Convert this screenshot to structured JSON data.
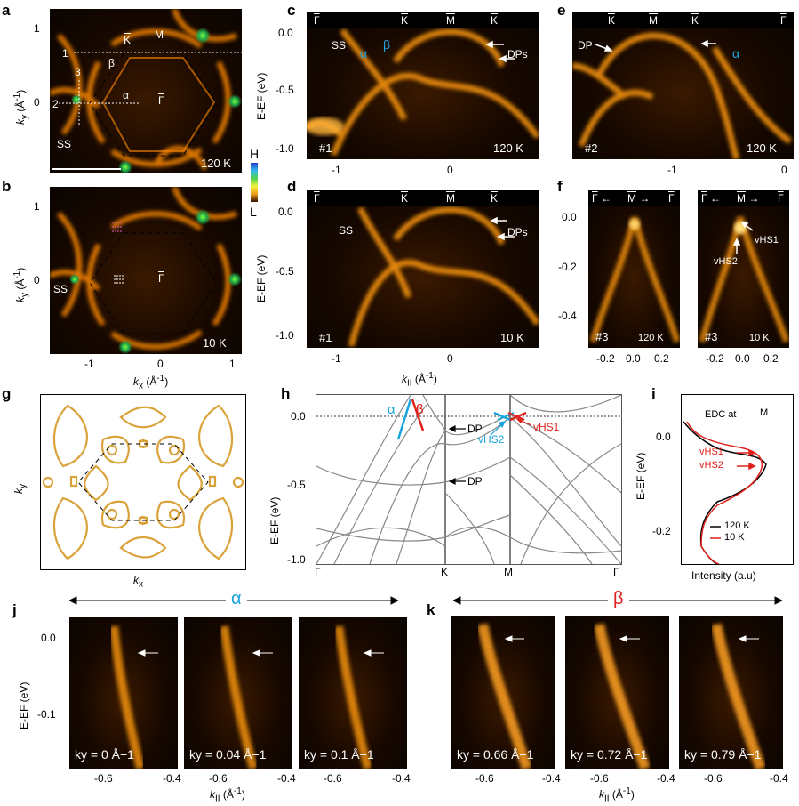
{
  "panel_letters": {
    "a": "a",
    "b": "b",
    "c": "c",
    "d": "d",
    "e": "e",
    "f": "f",
    "g": "g",
    "h": "h",
    "i": "i",
    "j": "j",
    "k": "k"
  },
  "a": {
    "labels": {
      "K": "K",
      "M": "M",
      "G": "Γ",
      "beta": "β",
      "alpha": "α",
      "l1": "1",
      "l2": "2",
      "l3": "3",
      "ss": "SS",
      "temp": "120 K"
    },
    "yticks": [
      "1",
      "0"
    ],
    "ylabel": "ky (Å-1)"
  },
  "b": {
    "labels": {
      "G": "Γ",
      "ss": "SS",
      "temp": "10 K"
    },
    "yticks": [
      "1",
      "0"
    ],
    "xticks": [
      "-1",
      "0",
      "1"
    ],
    "xlabel": "kx (Å-1)"
  },
  "colorbar": {
    "high": "H",
    "low": "L"
  },
  "c": {
    "syms": [
      "Γ",
      "K",
      "M",
      "K"
    ],
    "labels": {
      "ss": "SS",
      "alpha": "α",
      "beta": "β",
      "dps": "DPs",
      "num": "#1",
      "temp": "120 K"
    },
    "yticks": [
      "0.0",
      "-0.5",
      "-1.0"
    ],
    "xticks": [
      "-1",
      "0"
    ],
    "ylabel": "E-EF (eV)"
  },
  "d": {
    "syms": [
      "Γ",
      "K",
      "M",
      "K"
    ],
    "labels": {
      "ss": "SS",
      "dps": "DPs",
      "num": "#1",
      "temp": "10 K"
    },
    "yticks": [
      "0.0",
      "-0.5",
      "-1.0"
    ],
    "xticks": [
      "-1",
      "0"
    ],
    "ylabel": "E-EF (eV)",
    "xlabel": "kII (Å-1)"
  },
  "e": {
    "syms": [
      "K",
      "M",
      "K",
      "Γ"
    ],
    "labels": {
      "dp": "DP",
      "alpha": "α",
      "num": "#2",
      "temp": "120 K"
    },
    "xticks": [
      "-1",
      "0"
    ]
  },
  "f": {
    "syms_left": [
      "Γ",
      "M",
      "Γ"
    ],
    "syms_right": [
      "Γ",
      "M",
      "Γ"
    ],
    "labels": {
      "num_left": "#3",
      "temp_left": "120 K",
      "num_right": "#3",
      "temp_right": "10 K",
      "vhs1": "vHS1",
      "vhs2": "vHS2"
    },
    "yticks": [
      "0.0",
      "-0.2",
      "-0.4"
    ],
    "xticks": [
      "-0.2",
      "0.0",
      "0.2"
    ]
  },
  "g": {
    "xlabel": "kx",
    "ylabel": "ky"
  },
  "h": {
    "labels": {
      "alpha": "α",
      "beta": "β",
      "dp1": "DP",
      "dp2": "DP",
      "vhs1": "vHS1",
      "vhs2": "vHS2"
    },
    "yticks": [
      "0.0",
      "-0.5",
      "-1.0"
    ],
    "xticks": [
      "Γ",
      "K",
      "M",
      "Γ"
    ],
    "ylabel": "E-EF (eV)"
  },
  "i": {
    "title": "EDC at",
    "M": "M",
    "vhs1": "vHS1",
    "vhs2": "vHS2",
    "yticks": [
      "0.0",
      "-0.2"
    ],
    "ylabel": "E-EF (eV)",
    "xlabel": "Intensity (a.u)",
    "legend": [
      {
        "name": "120 K",
        "color": "#000000"
      },
      {
        "name": "10 K",
        "color": "#e0201b"
      }
    ]
  },
  "j": {
    "header": "α",
    "yticks": [
      "0.0",
      "-0.1"
    ],
    "ylabel": "E-EF (eV)",
    "xlabel": "kII (Å-1)",
    "panels": [
      {
        "ky": "ky = 0 Å−1",
        "xticks": [
          "-0.6",
          "-0.4"
        ]
      },
      {
        "ky": "ky = 0.04 Å−1",
        "xticks": [
          "-0.6",
          "-0.4"
        ]
      },
      {
        "ky": "ky = 0.1 Å−1",
        "xticks": [
          "-0.6",
          "-0.4"
        ]
      }
    ]
  },
  "k": {
    "header": "β",
    "xlabel": "kII (Å-1)",
    "panels": [
      {
        "ky": "ky = 0.66 Å−1",
        "xticks": [
          "-0.6",
          "-0.4"
        ]
      },
      {
        "ky": "ky = 0.72 Å−1",
        "xticks": [
          "-0.6",
          "-0.4"
        ]
      },
      {
        "ky": "ky = 0.79 Å−1",
        "xticks": [
          "-0.6",
          "-0.4"
        ]
      }
    ]
  },
  "colors": {
    "orange": "#ff8a00",
    "cyan": "#1aa4dd",
    "red": "#e0201b",
    "gold": "#d9a23a"
  }
}
